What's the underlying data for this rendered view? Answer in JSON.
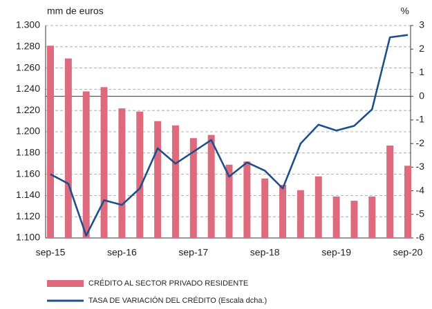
{
  "chart_data": {
    "type": "bar_line",
    "y_label": "mm de euros",
    "y2_label": "%",
    "categories": [
      "sep-15",
      null,
      null,
      null,
      "sep-16",
      null,
      null,
      null,
      "sep-17",
      null,
      null,
      null,
      "sep-18",
      null,
      null,
      null,
      "sep-19",
      null,
      null,
      null,
      "sep-20"
    ],
    "series": [
      {
        "name": "CRÉDITO AL SECTOR PRIVADO RESIDENTE",
        "type": "bar",
        "color": "#dd6b7d",
        "values": [
          1281,
          1269,
          1238,
          1242,
          1222,
          1219,
          1210,
          1206,
          1194,
          1197,
          1169,
          1172,
          1156,
          1150,
          1145,
          1158,
          1139,
          1135,
          1139,
          1187,
          1168
        ]
      },
      {
        "name": "TASA DE VARIACIÓN DEL CRÉDITO (Escala dcha.)",
        "type": "line",
        "axis": "y2",
        "color": "#1f4e8c",
        "values": [
          -3.3,
          -3.7,
          -5.9,
          -4.4,
          -4.6,
          -3.9,
          -2.2,
          -2.85,
          -2.35,
          -1.85,
          -3.4,
          -2.8,
          -3.15,
          -3.9,
          -2.0,
          -1.2,
          -1.45,
          -1.25,
          -0.55,
          2.5,
          2.6
        ]
      }
    ],
    "ylim": [
      1100,
      1300
    ],
    "yticks": [
      {
        "value": 1100,
        "label": "1.100"
      },
      {
        "value": 1120,
        "label": "1.120"
      },
      {
        "value": 1140,
        "label": "1.140"
      },
      {
        "value": 1160,
        "label": "1.160"
      },
      {
        "value": 1180,
        "label": "1.180"
      },
      {
        "value": 1200,
        "label": "1.200"
      },
      {
        "value": 1220,
        "label": "1.220"
      },
      {
        "value": 1240,
        "label": "1.240"
      },
      {
        "value": 1260,
        "label": "1.260"
      },
      {
        "value": 1280,
        "label": "1.280"
      },
      {
        "value": 1300,
        "label": "1.300"
      }
    ],
    "y2lim": [
      -6,
      3
    ],
    "y2ticks": [
      -6,
      -5,
      -4,
      -3,
      -2,
      -1,
      0,
      1,
      2,
      3
    ],
    "grid": true
  }
}
